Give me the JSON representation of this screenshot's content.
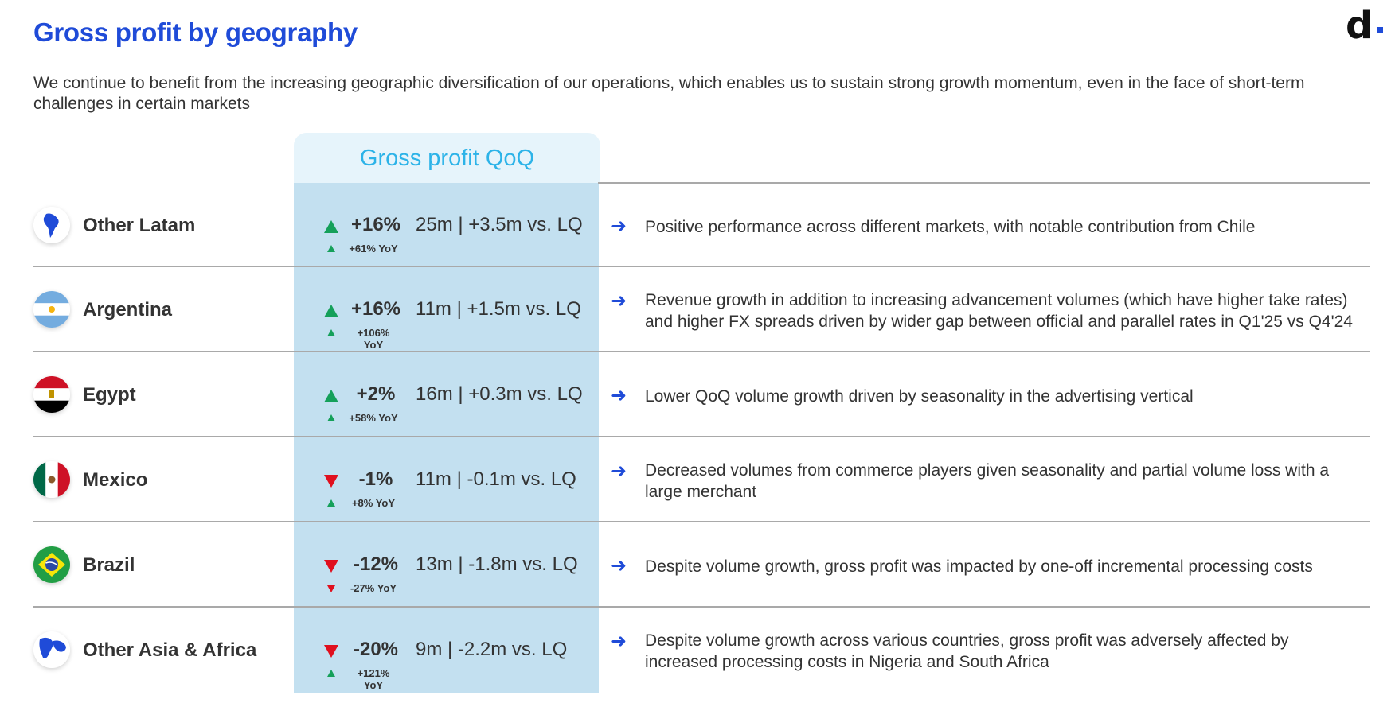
{
  "header": {
    "title": "Gross profit by geography",
    "logo_text": "d",
    "subtitle": "We continue to benefit from the increasing geographic diversification of our operations, which enables us to sustain strong growth momentum, even in the face of short-term challenges in certain markets"
  },
  "table": {
    "column_header": "Gross profit QoQ",
    "rows": [
      {
        "country": "Other Latam",
        "flag_icon": "south-america-globe-icon",
        "qoq_direction": "up",
        "qoq_change": "+16%",
        "absolute": "25m | +3.5m vs. LQ",
        "yoy_direction": "up",
        "yoy_change": "+61% YoY",
        "comment": "Positive performance across different markets, with notable contribution from Chile"
      },
      {
        "country": "Argentina",
        "flag_icon": "argentina-flag-icon",
        "qoq_direction": "up",
        "qoq_change": "+16%",
        "absolute": "11m | +1.5m vs. LQ",
        "yoy_direction": "up",
        "yoy_change": "+106% YoY",
        "comment": "Revenue growth in addition to increasing advancement volumes (which have higher take rates) and higher FX spreads driven by wider gap between official and parallel rates in Q1'25 vs Q4'24"
      },
      {
        "country": "Egypt",
        "flag_icon": "egypt-flag-icon",
        "qoq_direction": "up",
        "qoq_change": "+2%",
        "absolute": "16m | +0.3m vs. LQ",
        "yoy_direction": "up",
        "yoy_change": "+58% YoY",
        "comment": "Lower QoQ volume growth driven by seasonality in the advertising vertical"
      },
      {
        "country": "Mexico",
        "flag_icon": "mexico-flag-icon",
        "qoq_direction": "down",
        "qoq_change": "-1%",
        "absolute": "11m | -0.1m vs. LQ",
        "yoy_direction": "up",
        "yoy_change": "+8% YoY",
        "comment": "Decreased volumes from commerce players given seasonality and partial volume loss with a large merchant"
      },
      {
        "country": "Brazil",
        "flag_icon": "brazil-flag-icon",
        "qoq_direction": "down",
        "qoq_change": "-12%",
        "absolute": "13m | -1.8m vs. LQ",
        "yoy_direction": "down",
        "yoy_change": "-27% YoY",
        "comment": "Despite volume growth, gross profit was impacted by one-off incremental processing costs"
      },
      {
        "country": "Other Asia & Africa",
        "flag_icon": "asia-africa-globe-icon",
        "qoq_direction": "down",
        "qoq_change": "-20%",
        "absolute": "9m | -2.2m vs. LQ",
        "yoy_direction": "up",
        "yoy_change": "+121% YoY",
        "comment": "Despite volume growth across various countries, gross profit was adversely affected by increased processing costs in Nigeria and South Africa"
      }
    ]
  },
  "colors": {
    "brand_blue": "#1f4bd8",
    "header_cyan": "#2cb3e8",
    "highlight_column": "#c3e0f0",
    "up_green": "#15a05a",
    "down_red": "#e0101e"
  }
}
